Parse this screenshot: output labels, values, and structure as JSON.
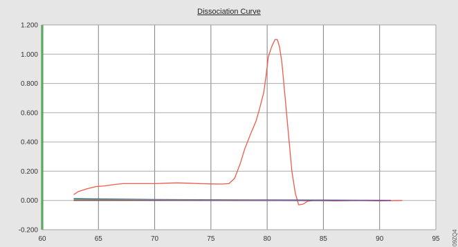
{
  "chart_data": {
    "type": "line",
    "title": "Dissociation Curve",
    "xlabel": "",
    "ylabel": "",
    "xlim": [
      60,
      95
    ],
    "ylim": [
      -0.2,
      1.2
    ],
    "x_ticks": [
      60,
      65,
      70,
      75,
      80,
      85,
      90,
      95
    ],
    "y_ticks": [
      1.2,
      1.0,
      0.8,
      0.6,
      0.4,
      0.2,
      0.0,
      -0.2
    ],
    "x_tick_labels": [
      "60",
      "65",
      "70",
      "75",
      "80",
      "85",
      "90",
      "95"
    ],
    "y_tick_labels": [
      "1.200",
      "1.000",
      "0.800",
      "0.600",
      "0.400",
      "0.200",
      "0.000",
      "-0.200"
    ],
    "grid": true,
    "colors": {
      "plot_background": "#ffffff",
      "outer_background": "#e6e6e6",
      "grid": "#7f7f7f",
      "y_axis": "#22a82a"
    },
    "series": [
      {
        "color": "#f0584a",
        "points": [
          [
            62.8,
            0.04
          ],
          [
            63.2,
            0.06
          ],
          [
            64,
            0.08
          ],
          [
            64.8,
            0.095
          ],
          [
            65.6,
            0.1
          ],
          [
            66.5,
            0.11
          ],
          [
            67.2,
            0.115
          ],
          [
            68,
            0.115
          ],
          [
            69,
            0.115
          ],
          [
            70,
            0.115
          ],
          [
            71,
            0.118
          ],
          [
            72,
            0.12
          ],
          [
            73,
            0.118
          ],
          [
            74,
            0.115
          ],
          [
            75,
            0.113
          ],
          [
            76,
            0.112
          ],
          [
            76.6,
            0.115
          ],
          [
            77.1,
            0.15
          ],
          [
            77.6,
            0.25
          ],
          [
            78,
            0.35
          ],
          [
            78.5,
            0.45
          ],
          [
            79,
            0.54
          ],
          [
            79.3,
            0.62
          ],
          [
            79.7,
            0.74
          ],
          [
            79.9,
            0.85
          ],
          [
            80.1,
            0.98
          ],
          [
            80.4,
            1.05
          ],
          [
            80.7,
            1.1
          ],
          [
            80.9,
            1.1
          ],
          [
            81.1,
            1.05
          ],
          [
            81.3,
            0.95
          ],
          [
            81.6,
            0.7
          ],
          [
            81.9,
            0.45
          ],
          [
            82.2,
            0.2
          ],
          [
            82.5,
            0.05
          ],
          [
            82.8,
            -0.03
          ],
          [
            83.2,
            -0.025
          ],
          [
            83.6,
            -0.005
          ],
          [
            84.2,
            0.0
          ],
          [
            86,
            -0.003
          ],
          [
            88,
            0.0
          ],
          [
            90,
            -0.003
          ],
          [
            92,
            0.0
          ]
        ]
      },
      {
        "color": "#1b3f8c",
        "points": [
          [
            62.8,
            0.012
          ],
          [
            70,
            0.006
          ],
          [
            78,
            0.004
          ],
          [
            86,
            0.002
          ],
          [
            91,
            0.001
          ]
        ]
      },
      {
        "color": "#3a9a37",
        "points": [
          [
            62.8,
            0.008
          ],
          [
            70,
            0.004
          ],
          [
            76,
            0.003
          ],
          [
            82,
            0.0
          ],
          [
            91,
            0.0
          ]
        ]
      },
      {
        "color": "#d9c13a",
        "points": [
          [
            62.8,
            0.004
          ],
          [
            70,
            0.002
          ],
          [
            78,
            0.001
          ],
          [
            84,
            -0.002
          ],
          [
            91,
            -0.001
          ]
        ]
      },
      {
        "color": "#7b3f9a",
        "points": [
          [
            62.8,
            0.0
          ],
          [
            70,
            0.0
          ],
          [
            78,
            -0.001
          ],
          [
            84,
            -0.001
          ],
          [
            91,
            0.0
          ]
        ]
      }
    ],
    "side_code": "09ZQ4"
  }
}
